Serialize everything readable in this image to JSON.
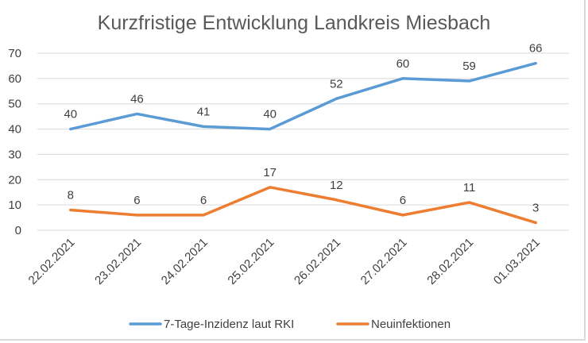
{
  "chart_data": {
    "type": "line",
    "title": "Kurzfristige Entwicklung Landkreis Miesbach",
    "xlabel": "",
    "ylabel": "",
    "categories": [
      "22.02.2021",
      "23.02.2021",
      "24.02.2021",
      "25.02.2021",
      "26.02.2021",
      "27.02.2021",
      "28.02.2021",
      "01.03.2021"
    ],
    "ylim": [
      0,
      70
    ],
    "yticks": [
      0,
      10,
      20,
      30,
      40,
      50,
      60,
      70
    ],
    "grid": true,
    "legend_position": "bottom",
    "series": [
      {
        "name": "7-Tage-Inzidenz laut RKI",
        "color": "#5b9bd5",
        "values": [
          40,
          46,
          41,
          40,
          52,
          60,
          59,
          66
        ]
      },
      {
        "name": "Neuinfektionen",
        "color": "#ed7d31",
        "values": [
          8,
          6,
          6,
          17,
          12,
          6,
          11,
          3
        ]
      }
    ]
  }
}
